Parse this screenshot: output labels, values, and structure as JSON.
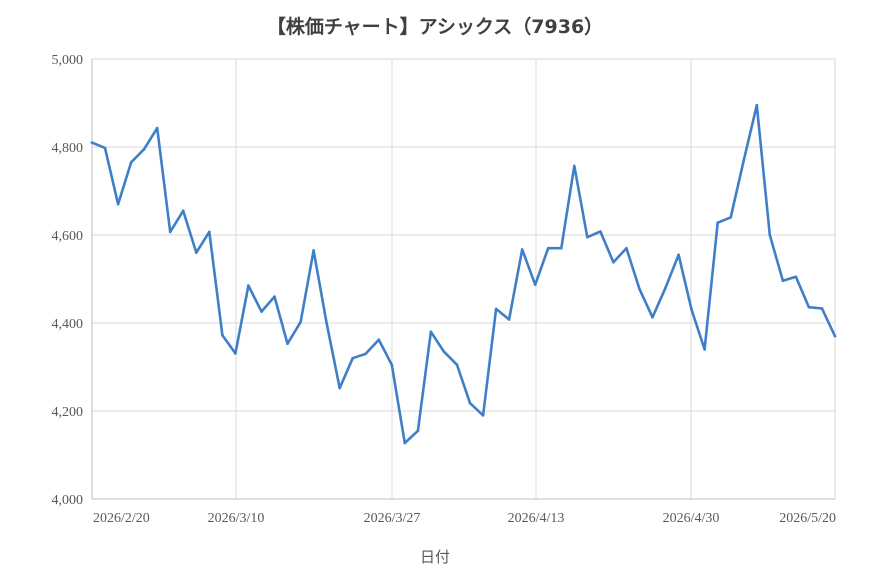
{
  "chart_data": {
    "type": "line",
    "title": "【株価チャート】アシックス（7936）",
    "xlabel": "日付",
    "ylabel": "",
    "ylim": [
      4000,
      5000
    ],
    "yticks": [
      4000,
      4200,
      4400,
      4600,
      4800,
      5000
    ],
    "ytick_labels": [
      "4,000",
      "4,200",
      "4,400",
      "4,600",
      "4,800",
      "5,000"
    ],
    "xtick_labels": [
      "2026/2/20",
      "2026/3/10",
      "2026/3/27",
      "2026/4/13",
      "2026/4/30",
      "2026/5/20"
    ],
    "grid": true,
    "legend": "none",
    "colors": {
      "line": "#3f7fc8"
    },
    "series": [
      {
        "values": [
          4810,
          4798,
          4670,
          4765,
          4795,
          4843,
          4607,
          4655,
          4560,
          4607,
          4372,
          4331,
          4485,
          4426,
          4460,
          4353,
          4402,
          4565,
          4400,
          4252,
          4320,
          4330,
          4362,
          4305,
          4127,
          4155,
          4380,
          4335,
          4305,
          4218,
          4190,
          4432,
          4408,
          4567,
          4487,
          4570,
          4570,
          4757,
          4595,
          4608,
          4538,
          4570,
          4477,
          4413,
          4480,
          4555,
          4430,
          4340,
          4628,
          4640,
          4770,
          4895,
          4600,
          4496,
          4505,
          4436,
          4433,
          4370
        ]
      }
    ]
  }
}
